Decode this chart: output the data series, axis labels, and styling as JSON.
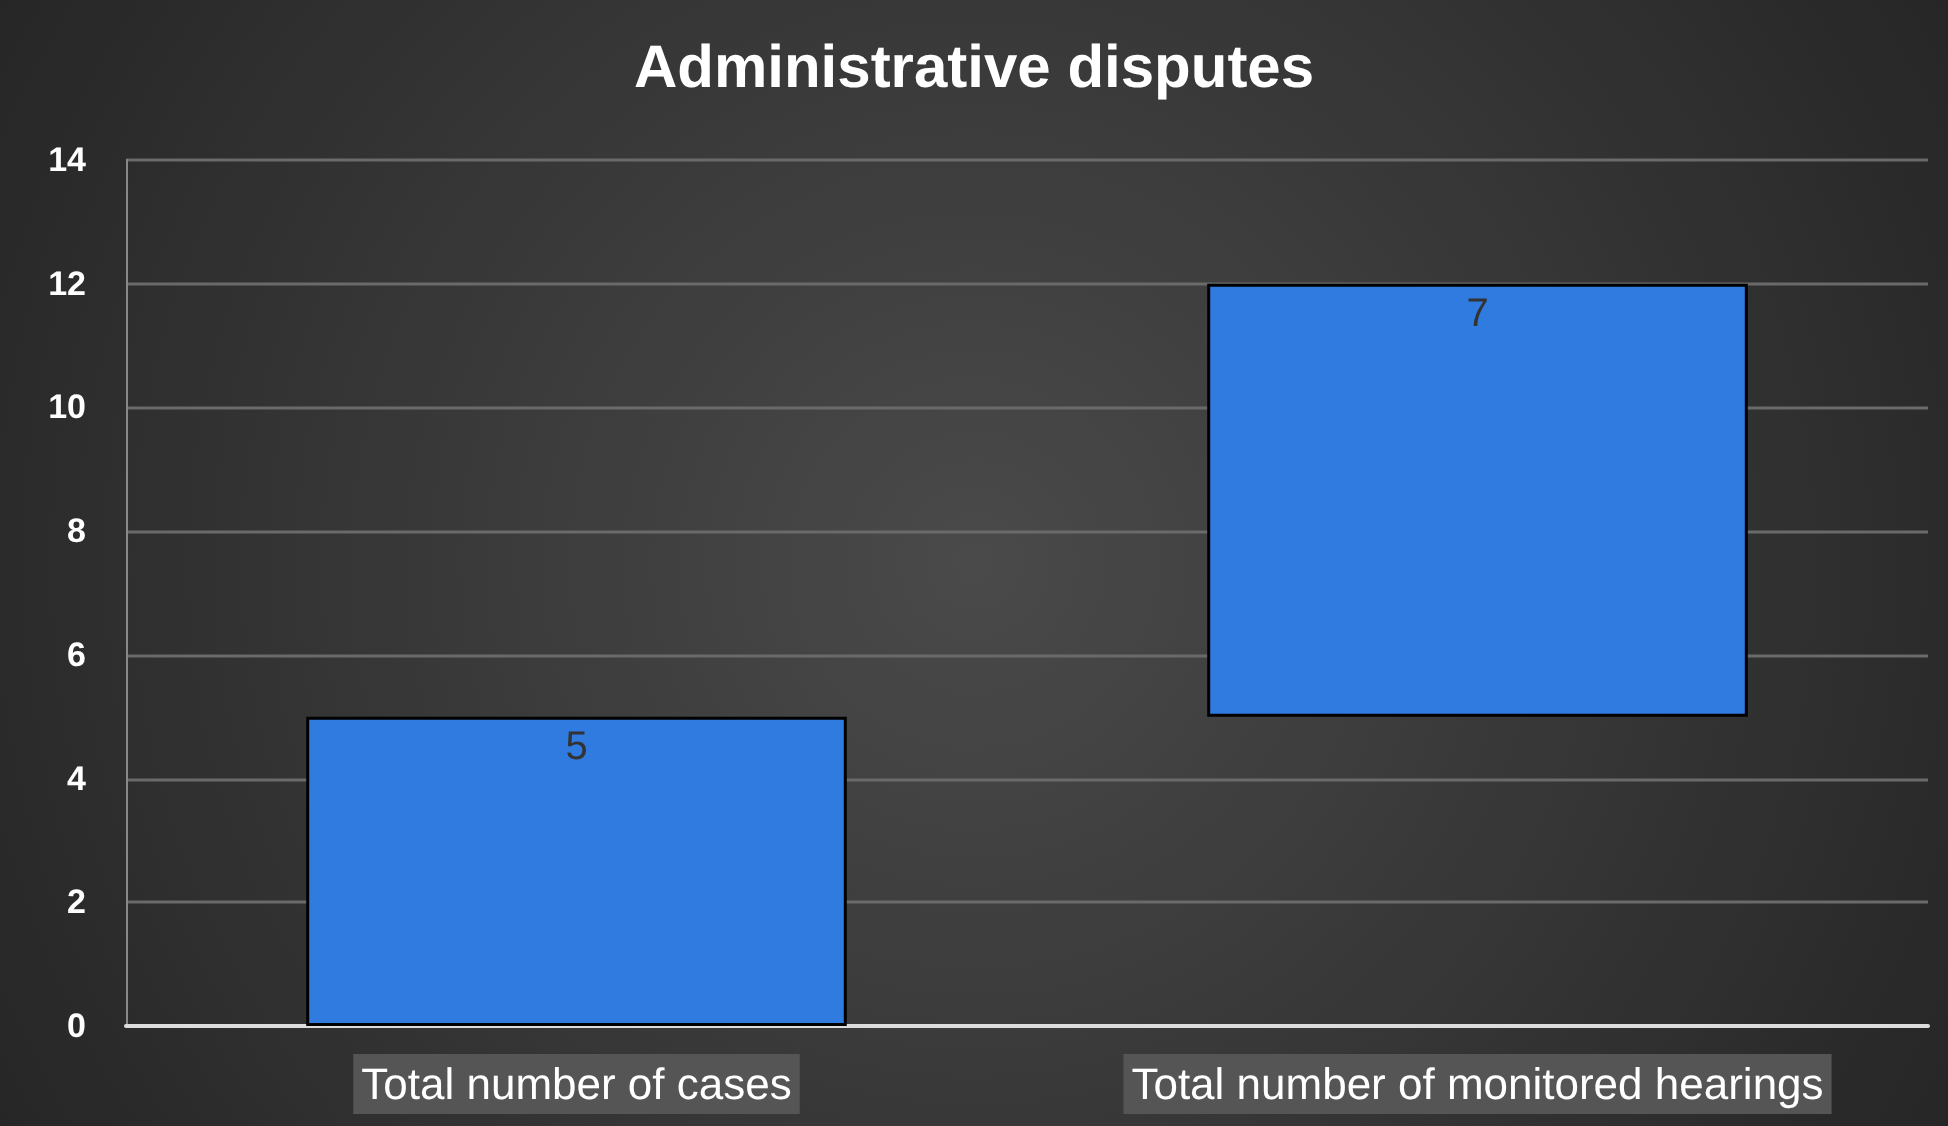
{
  "chart_data": {
    "type": "bar",
    "title": "Administrative disputes",
    "categories": [
      "Total number of cases",
      "Total number of monitored hearings"
    ],
    "values": [
      5,
      7
    ],
    "base": [
      0,
      5
    ],
    "color": "#2f7be0",
    "ylim": [
      0,
      14
    ],
    "yticks": [
      0,
      2,
      4,
      6,
      8,
      10,
      12,
      14
    ],
    "grid": "y",
    "data_labels": true
  }
}
